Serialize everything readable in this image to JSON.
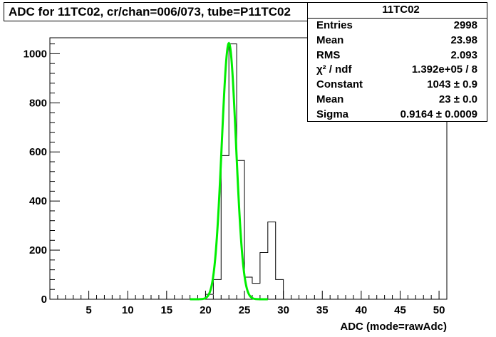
{
  "chart_data": {
    "type": "histogram",
    "title": "ADC for 11TC02,  cr/chan=006/073,  tube=P11TC02",
    "xlabel": "ADC (mode=rawAdc)",
    "ylabel": "",
    "xlim": [
      0,
      51
    ],
    "ylim": [
      0,
      1065
    ],
    "x_ticks": [
      5,
      10,
      15,
      20,
      25,
      30,
      35,
      40,
      45,
      50
    ],
    "y_ticks": [
      0,
      200,
      400,
      600,
      800,
      1000
    ],
    "grid": false,
    "bins": [
      {
        "low": 20,
        "high": 21,
        "count": 20
      },
      {
        "low": 21,
        "high": 22,
        "count": 80
      },
      {
        "low": 22,
        "high": 23,
        "count": 585
      },
      {
        "low": 23,
        "high": 24,
        "count": 1040
      },
      {
        "low": 24,
        "high": 25,
        "count": 565
      },
      {
        "low": 25,
        "high": 26,
        "count": 90
      },
      {
        "low": 26,
        "high": 27,
        "count": 65
      },
      {
        "low": 27,
        "high": 28,
        "count": 190
      },
      {
        "low": 28,
        "high": 29,
        "count": 315
      },
      {
        "low": 29,
        "high": 30,
        "count": 80
      }
    ],
    "fit": {
      "function": "gaussian",
      "constant": 1043,
      "mean": 23,
      "sigma": 0.9164,
      "x_range": [
        18,
        28
      ],
      "color": "#00ee00"
    },
    "histogram_color": "#000000"
  },
  "stats": {
    "title": "11TC02",
    "rows": [
      {
        "label": "Entries",
        "value": "2998"
      },
      {
        "label": "Mean",
        "value": "23.98"
      },
      {
        "label": "RMS",
        "value": "2.093"
      },
      {
        "label": "χ² / ndf",
        "value": "1.392e+05 / 8"
      },
      {
        "label": "Constant",
        "value": "1043 ± 0.9"
      },
      {
        "label": "Mean",
        "value": "23 ± 0.0"
      },
      {
        "label": "Sigma",
        "value": "0.9164 ± 0.0009"
      }
    ]
  }
}
